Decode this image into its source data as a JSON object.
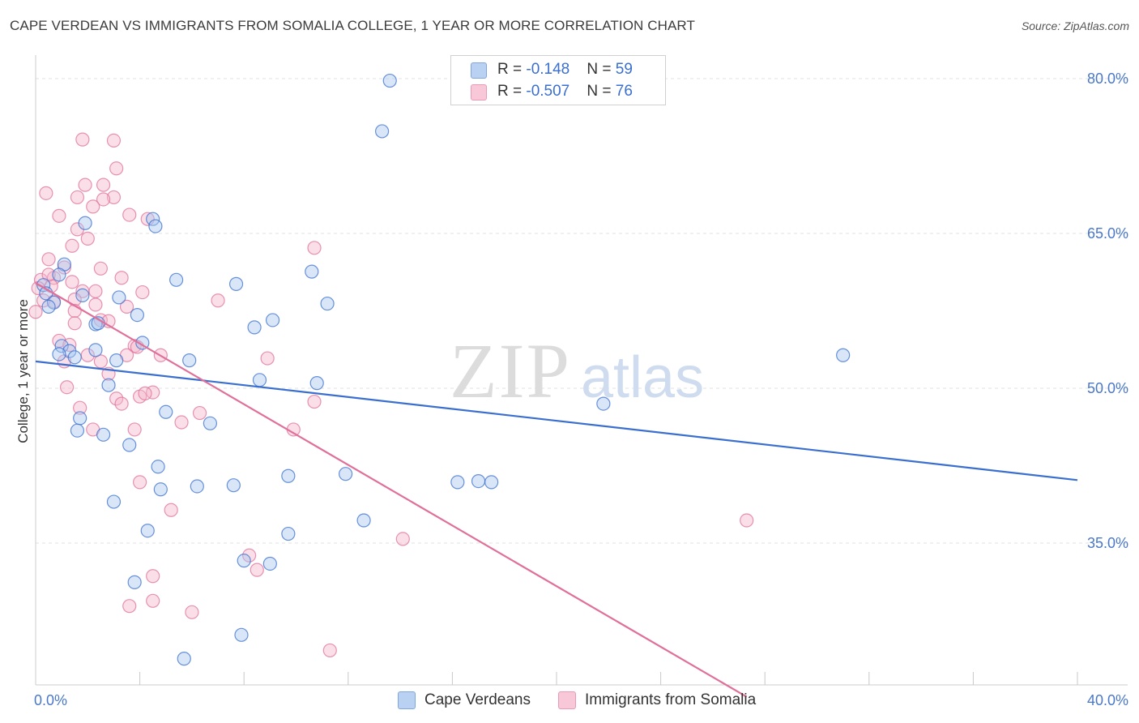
{
  "header": {
    "title": "CAPE VERDEAN VS IMMIGRANTS FROM SOMALIA COLLEGE, 1 YEAR OR MORE CORRELATION CHART",
    "source": "Source: ZipAtlas.com"
  },
  "watermark": {
    "part1": "ZIP",
    "part2": "atlas"
  },
  "legend": {
    "rows": [
      {
        "r_label": "R = ",
        "r_value": "-0.148",
        "n_label": "N = ",
        "n_value": "59"
      },
      {
        "r_label": "R = ",
        "r_value": "-0.507",
        "n_label": "N = ",
        "n_value": "76"
      }
    ]
  },
  "bottom_legend": {
    "series0": "Cape Verdeans",
    "series1": "Immigrants from Somalia"
  },
  "chart_data": {
    "type": "scatter",
    "title": "CAPE VERDEAN VS IMMIGRANTS FROM SOMALIA COLLEGE, 1 YEAR OR MORE CORRELATION CHART",
    "ylabel": "College, 1 year or more",
    "xlabel": "",
    "xlim": [
      0,
      40
    ],
    "ylim": [
      20,
      82
    ],
    "x_tick_labels": [
      "0.0%",
      "40.0%"
    ],
    "y_ticks": [
      35,
      50,
      65,
      80
    ],
    "y_tick_labels": [
      "35.0%",
      "50.0%",
      "65.0%",
      "80.0%"
    ],
    "grid": true,
    "legend_position": "top-center",
    "colors": {
      "series0": "#3a6fcf",
      "series1": "#e07099",
      "fill0": "#a9c7f0",
      "fill1": "#f5b8cd"
    },
    "series": [
      {
        "name": "Cape Verdeans",
        "r": -0.148,
        "n": 59,
        "trend": {
          "x0": 0,
          "y0": 52.6,
          "x1": 40,
          "y1": 41.1
        },
        "points": [
          [
            13.6,
            79.8
          ],
          [
            13.3,
            74.9
          ],
          [
            1.9,
            66.0
          ],
          [
            4.5,
            66.4
          ],
          [
            4.6,
            65.7
          ],
          [
            1.1,
            62.0
          ],
          [
            0.9,
            61.0
          ],
          [
            10.6,
            61.3
          ],
          [
            5.4,
            60.5
          ],
          [
            7.7,
            60.1
          ],
          [
            0.3,
            60.0
          ],
          [
            0.4,
            59.2
          ],
          [
            1.8,
            59.0
          ],
          [
            3.2,
            58.8
          ],
          [
            0.7,
            58.3
          ],
          [
            0.5,
            57.9
          ],
          [
            11.2,
            58.2
          ],
          [
            3.9,
            57.1
          ],
          [
            9.1,
            56.6
          ],
          [
            2.3,
            56.2
          ],
          [
            8.4,
            55.9
          ],
          [
            2.4,
            56.3
          ],
          [
            4.1,
            54.4
          ],
          [
            1.0,
            54.1
          ],
          [
            1.3,
            53.6
          ],
          [
            2.3,
            53.7
          ],
          [
            0.9,
            53.3
          ],
          [
            1.5,
            53.0
          ],
          [
            5.9,
            52.7
          ],
          [
            3.1,
            52.7
          ],
          [
            8.6,
            50.8
          ],
          [
            10.8,
            50.5
          ],
          [
            2.8,
            50.3
          ],
          [
            31.0,
            53.2
          ],
          [
            21.8,
            48.5
          ],
          [
            5.0,
            47.7
          ],
          [
            1.7,
            47.1
          ],
          [
            6.7,
            46.6
          ],
          [
            1.6,
            45.9
          ],
          [
            2.6,
            45.5
          ],
          [
            3.6,
            44.5
          ],
          [
            4.7,
            42.4
          ],
          [
            9.7,
            41.5
          ],
          [
            11.9,
            41.7
          ],
          [
            16.2,
            40.9
          ],
          [
            17.5,
            40.9
          ],
          [
            17.0,
            41.0
          ],
          [
            6.2,
            40.5
          ],
          [
            7.6,
            40.6
          ],
          [
            4.8,
            40.2
          ],
          [
            3.0,
            39.0
          ],
          [
            12.6,
            37.2
          ],
          [
            4.3,
            36.2
          ],
          [
            9.7,
            35.9
          ],
          [
            8.0,
            33.3
          ],
          [
            9.0,
            33.0
          ],
          [
            3.8,
            31.2
          ],
          [
            7.9,
            26.1
          ],
          [
            5.7,
            23.8
          ]
        ]
      },
      {
        "name": "Immigrants from Somalia",
        "r": -0.507,
        "n": 76,
        "trend": {
          "x0": 0,
          "y0": 60.2,
          "x1": 27.3,
          "y1": 20.1
        },
        "points": [
          [
            1.8,
            74.1
          ],
          [
            3.0,
            74.0
          ],
          [
            3.1,
            71.3
          ],
          [
            1.9,
            69.7
          ],
          [
            2.6,
            69.7
          ],
          [
            0.4,
            68.9
          ],
          [
            1.6,
            68.5
          ],
          [
            3.0,
            68.5
          ],
          [
            2.6,
            68.3
          ],
          [
            2.2,
            67.6
          ],
          [
            0.9,
            66.7
          ],
          [
            3.6,
            66.8
          ],
          [
            4.3,
            66.4
          ],
          [
            1.6,
            65.4
          ],
          [
            2.0,
            64.5
          ],
          [
            1.4,
            63.8
          ],
          [
            10.7,
            63.6
          ],
          [
            0.5,
            62.5
          ],
          [
            1.1,
            61.7
          ],
          [
            2.5,
            61.6
          ],
          [
            0.2,
            60.5
          ],
          [
            0.7,
            60.7
          ],
          [
            1.4,
            60.3
          ],
          [
            0.6,
            59.9
          ],
          [
            0.1,
            59.7
          ],
          [
            2.3,
            59.4
          ],
          [
            4.1,
            59.3
          ],
          [
            1.8,
            59.4
          ],
          [
            0.7,
            58.4
          ],
          [
            1.5,
            58.6
          ],
          [
            7.0,
            58.5
          ],
          [
            2.3,
            58.1
          ],
          [
            3.5,
            57.9
          ],
          [
            1.5,
            57.5
          ],
          [
            0.0,
            57.4
          ],
          [
            2.5,
            56.6
          ],
          [
            2.8,
            56.5
          ],
          [
            0.9,
            54.6
          ],
          [
            1.3,
            54.2
          ],
          [
            3.8,
            54.1
          ],
          [
            3.5,
            53.2
          ],
          [
            2.0,
            53.2
          ],
          [
            3.9,
            54.0
          ],
          [
            4.8,
            53.2
          ],
          [
            8.9,
            52.9
          ],
          [
            1.1,
            52.6
          ],
          [
            2.8,
            51.4
          ],
          [
            1.2,
            50.1
          ],
          [
            4.5,
            49.6
          ],
          [
            3.1,
            49.0
          ],
          [
            3.3,
            48.5
          ],
          [
            4.0,
            49.2
          ],
          [
            10.7,
            48.7
          ],
          [
            1.7,
            48.1
          ],
          [
            6.3,
            47.6
          ],
          [
            5.6,
            46.7
          ],
          [
            9.9,
            46.0
          ],
          [
            3.8,
            46.0
          ],
          [
            2.2,
            46.0
          ],
          [
            4.0,
            40.9
          ],
          [
            5.2,
            38.2
          ],
          [
            14.1,
            35.4
          ],
          [
            27.3,
            37.2
          ],
          [
            8.2,
            33.8
          ],
          [
            8.5,
            32.4
          ],
          [
            4.5,
            31.8
          ],
          [
            4.5,
            29.4
          ],
          [
            3.6,
            28.9
          ],
          [
            6.0,
            28.3
          ],
          [
            11.3,
            24.6
          ],
          [
            1.5,
            56.3
          ],
          [
            2.5,
            52.6
          ],
          [
            3.3,
            60.7
          ],
          [
            0.5,
            61.0
          ],
          [
            0.3,
            58.5
          ],
          [
            4.2,
            49.5
          ]
        ]
      }
    ]
  }
}
